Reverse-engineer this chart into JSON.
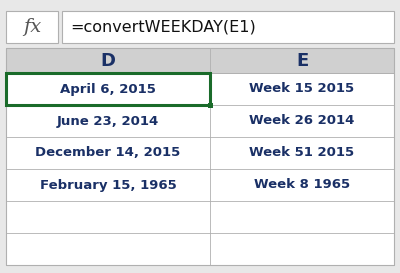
{
  "formula_bar_icon": "fx",
  "formula_text": "=convertWEEKDAY(E1)",
  "col_d_header": "D",
  "col_e_header": "E",
  "col_d_values": [
    "April 6, 2015",
    "June 23, 2014",
    "December 14, 2015",
    "February 15, 1965"
  ],
  "col_e_values": [
    "Week 15 2015",
    "Week 26 2014",
    "Week 51 2015",
    "Week 8 1965"
  ],
  "bg_color": "#e8e8e8",
  "cell_bg": "#ffffff",
  "header_bg": "#d0d0d0",
  "selected_cell_border": "#1a6b2a",
  "grid_color": "#b0b0b0",
  "text_color": "#1a3066",
  "formula_bar_bg": "#ffffff",
  "formula_bar_border": "#b0b0b0",
  "outer_border": "#b0b0b0"
}
